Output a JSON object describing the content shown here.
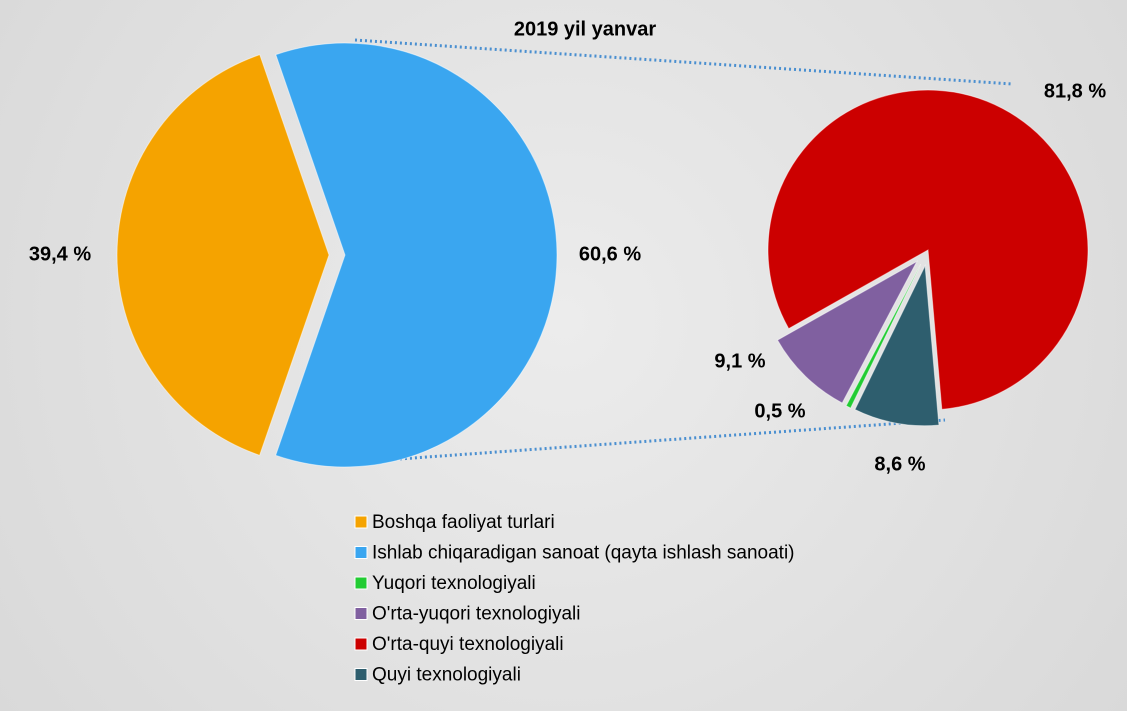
{
  "chart_data": [
    {
      "type": "pie",
      "title": "2019 yil yanvar",
      "categories": [
        "Boshqa faoliyat turlari",
        "Ishlab chiqaradigan sanoat (qayta ishlash sanoati)"
      ],
      "values": [
        39.4,
        60.6
      ],
      "value_labels": [
        "39,4 %",
        "60,6 %"
      ],
      "colors": [
        "#f5a300",
        "#3aa6f0"
      ]
    },
    {
      "type": "pie",
      "categories": [
        "Yuqori texnologiyali",
        "O'rta-yuqori texnologiyali",
        "O'rta-quyi texnologiyali",
        "Quyi texnologiyali"
      ],
      "values": [
        0.5,
        9.1,
        81.8,
        8.6
      ],
      "value_labels": [
        "0,5 %",
        "9,1 %",
        "81,8 %",
        "8,6 %"
      ],
      "colors": [
        "#22cc33",
        "#8060a0",
        "#cc0000",
        "#2e5e6e"
      ]
    }
  ]
}
